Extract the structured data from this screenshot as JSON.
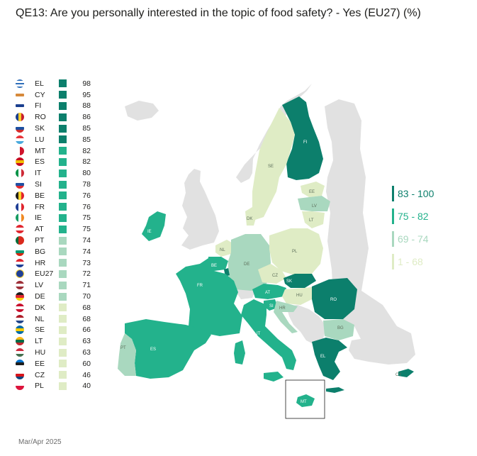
{
  "title": "QE13: Are you personally interested in the topic of food safety? - Yes (EU27) (%)",
  "footer": "Mar/Apr 2025",
  "colors": {
    "band1": "#0c7f6c",
    "band2": "#23b28c",
    "band3": "#a9d8bf",
    "band4": "#dfecc5",
    "non_eu": "#e1e1e1"
  },
  "legend": [
    {
      "label": "83 - 100",
      "color": "#0c7f6c"
    },
    {
      "label": "75 - 82",
      "color": "#23b28c"
    },
    {
      "label": "69 - 74",
      "color": "#a9d8bf"
    },
    {
      "label": "1 - 68",
      "color": "#dfecc5"
    }
  ],
  "rows": [
    {
      "code": "EL",
      "value": "98",
      "color": "#0c7f6c",
      "flag": {
        "dir": "h",
        "stripes": [
          "#2f6fba",
          "#ffffff",
          "#2f6fba",
          "#ffffff",
          "#2f6fba"
        ]
      }
    },
    {
      "code": "CY",
      "value": "95",
      "color": "#0c7f6c",
      "flag": {
        "dir": "h",
        "stripes": [
          "#ffffff",
          "#d6893a",
          "#ffffff"
        ]
      }
    },
    {
      "code": "FI",
      "value": "88",
      "color": "#0c7f6c",
      "flag": {
        "dir": "h",
        "stripes": [
          "#ffffff",
          "#1b3f8f",
          "#ffffff"
        ]
      }
    },
    {
      "code": "RO",
      "value": "86",
      "color": "#0c7f6c",
      "flag": {
        "dir": "v",
        "stripes": [
          "#1b3f8f",
          "#f5cd2a",
          "#c7202e"
        ]
      }
    },
    {
      "code": "SK",
      "value": "85",
      "color": "#0c7f6c",
      "flag": {
        "dir": "h",
        "stripes": [
          "#ffffff",
          "#1b4fa0",
          "#d52b2b"
        ]
      }
    },
    {
      "code": "LU",
      "value": "85",
      "color": "#0c7f6c",
      "flag": {
        "dir": "h",
        "stripes": [
          "#e8353b",
          "#ffffff",
          "#48a9dc"
        ]
      }
    },
    {
      "code": "MT",
      "value": "82",
      "color": "#23b28c",
      "flag": {
        "dir": "v",
        "stripes": [
          "#ffffff",
          "#cf142b"
        ]
      }
    },
    {
      "code": "ES",
      "value": "82",
      "color": "#23b28c",
      "flag": {
        "dir": "h",
        "stripes": [
          "#c60b1e",
          "#f1bf00",
          "#c60b1e"
        ]
      }
    },
    {
      "code": "IT",
      "value": "80",
      "color": "#23b28c",
      "flag": {
        "dir": "v",
        "stripes": [
          "#009246",
          "#ffffff",
          "#ce2b37"
        ]
      }
    },
    {
      "code": "SI",
      "value": "78",
      "color": "#23b28c",
      "flag": {
        "dir": "h",
        "stripes": [
          "#ffffff",
          "#1f4fa3",
          "#e22a30"
        ]
      }
    },
    {
      "code": "BE",
      "value": "76",
      "color": "#23b28c",
      "flag": {
        "dir": "v",
        "stripes": [
          "#1d1d1b",
          "#f7d32b",
          "#e2232c"
        ]
      }
    },
    {
      "code": "FR",
      "value": "76",
      "color": "#23b28c",
      "flag": {
        "dir": "v",
        "stripes": [
          "#1f3f96",
          "#ffffff",
          "#e0262f"
        ]
      }
    },
    {
      "code": "IE",
      "value": "75",
      "color": "#23b28c",
      "flag": {
        "dir": "v",
        "stripes": [
          "#169b62",
          "#ffffff",
          "#f08a24"
        ]
      }
    },
    {
      "code": "AT",
      "value": "75",
      "color": "#23b28c",
      "flag": {
        "dir": "h",
        "stripes": [
          "#e0262f",
          "#ffffff",
          "#e0262f"
        ]
      }
    },
    {
      "code": "PT",
      "value": "74",
      "color": "#a9d8bf",
      "flag": {
        "dir": "v",
        "stripes": [
          "#046a38",
          "#da291c",
          "#da291c"
        ]
      }
    },
    {
      "code": "BG",
      "value": "74",
      "color": "#a9d8bf",
      "flag": {
        "dir": "h",
        "stripes": [
          "#ffffff",
          "#00966e",
          "#d62612"
        ]
      }
    },
    {
      "code": "HR",
      "value": "73",
      "color": "#a9d8bf",
      "flag": {
        "dir": "h",
        "stripes": [
          "#e0262f",
          "#ffffff",
          "#1f3f96"
        ]
      }
    },
    {
      "code": "EU27",
      "value": "72",
      "color": "#a9d8bf",
      "flag": {
        "dir": "h",
        "stripes": [
          "#1f3f96"
        ]
      }
    },
    {
      "code": "LV",
      "value": "71",
      "color": "#a9d8bf",
      "flag": {
        "dir": "h",
        "stripes": [
          "#9e3039",
          "#ffffff",
          "#9e3039"
        ]
      }
    },
    {
      "code": "DE",
      "value": "70",
      "color": "#a9d8bf",
      "flag": {
        "dir": "h",
        "stripes": [
          "#1d1d1b",
          "#e0262f",
          "#f7ce00"
        ]
      }
    },
    {
      "code": "DK",
      "value": "68",
      "color": "#dfecc5",
      "flag": {
        "dir": "h",
        "stripes": [
          "#c8102e",
          "#ffffff",
          "#c8102e"
        ]
      }
    },
    {
      "code": "NL",
      "value": "68",
      "color": "#dfecc5",
      "flag": {
        "dir": "h",
        "stripes": [
          "#ae1c28",
          "#ffffff",
          "#21468b"
        ]
      }
    },
    {
      "code": "SE",
      "value": "66",
      "color": "#dfecc5",
      "flag": {
        "dir": "h",
        "stripes": [
          "#006aa7",
          "#fecc00",
          "#006aa7"
        ]
      }
    },
    {
      "code": "LT",
      "value": "63",
      "color": "#dfecc5",
      "flag": {
        "dir": "h",
        "stripes": [
          "#fdb913",
          "#006a44",
          "#c1272d"
        ]
      }
    },
    {
      "code": "HU",
      "value": "63",
      "color": "#dfecc5",
      "flag": {
        "dir": "h",
        "stripes": [
          "#cd2a3e",
          "#ffffff",
          "#436f4d"
        ]
      }
    },
    {
      "code": "EE",
      "value": "60",
      "color": "#dfecc5",
      "flag": {
        "dir": "h",
        "stripes": [
          "#0072ce",
          "#1d1d1b",
          "#ffffff"
        ]
      }
    },
    {
      "code": "CZ",
      "value": "46",
      "color": "#dfecc5",
      "flag": {
        "dir": "h",
        "stripes": [
          "#ffffff",
          "#d7141a",
          "#11457e"
        ]
      }
    },
    {
      "code": "PL",
      "value": "40",
      "color": "#dfecc5",
      "flag": {
        "dir": "h",
        "stripes": [
          "#ffffff",
          "#dc143c"
        ]
      }
    }
  ],
  "map_labels": {
    "EL": "EL",
    "CY": "CY",
    "FI": "FI",
    "RO": "RO",
    "SK": "SK",
    "MT": "MT",
    "ES": "ES",
    "IT": "IT",
    "SI": "SI",
    "BE": "BE",
    "FR": "FR",
    "IE": "IE",
    "AT": "AT",
    "PT": "PT",
    "BG": "BG",
    "HR": "HR",
    "LV": "LV",
    "DE": "DE",
    "DK": "DK",
    "NL": "NL",
    "SE": "SE",
    "LT": "LT",
    "HU": "HU",
    "EE": "EE",
    "CZ": "CZ",
    "PL": "PL"
  }
}
